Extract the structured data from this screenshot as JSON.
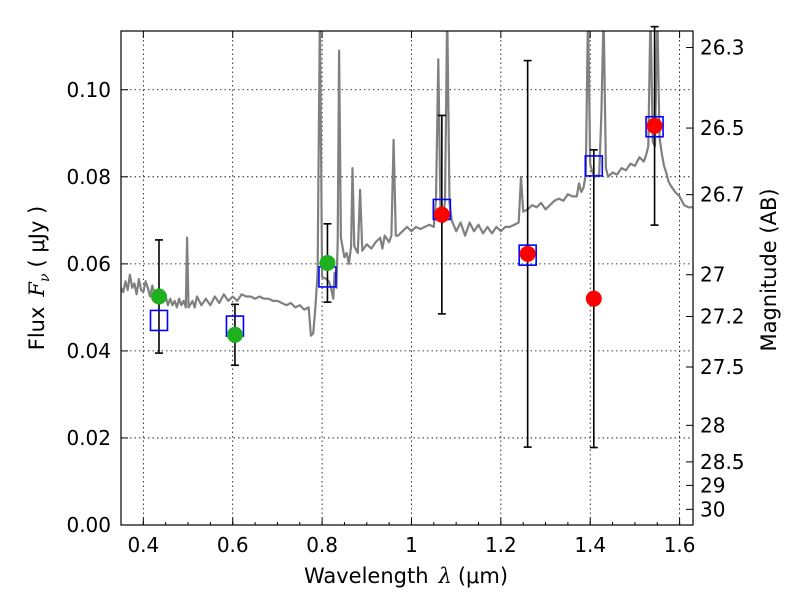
{
  "chart_data": {
    "type": "scatter",
    "xlabel_prefix": "Wavelength",
    "xlabel_symbol": "λ",
    "xlabel_unit": "(μm)",
    "ylabel_prefix": "Flux",
    "ylabel_symbol": "F",
    "ylabel_sub": "ν",
    "ylabel_unit": "( μJy )",
    "ylabel_right": "Magnitude (AB)",
    "xlim": [
      0.35,
      1.63
    ],
    "ylim": [
      0.0,
      0.1135
    ],
    "grid": true,
    "x_ticks": [
      0.4,
      0.6,
      0.8,
      1.0,
      1.2,
      1.4,
      1.6
    ],
    "x_tick_labels": [
      "0.4",
      "0.6",
      "0.8",
      "1",
      "1.2",
      "1.4",
      "1.6"
    ],
    "y_ticks": [
      0.0,
      0.02,
      0.04,
      0.06,
      0.08,
      0.1
    ],
    "y_tick_labels": [
      "0.00",
      "0.02",
      "0.04",
      "0.06",
      "0.08",
      "0.10"
    ],
    "right_ticks": [
      {
        "label": "26.3",
        "flux": 0.1097
      },
      {
        "label": "26.5",
        "flux": 0.0912
      },
      {
        "label": "26.7",
        "flux": 0.0759
      },
      {
        "label": "27",
        "flux": 0.0575
      },
      {
        "label": "27.2",
        "flux": 0.0479
      },
      {
        "label": "27.5",
        "flux": 0.0363
      },
      {
        "label": "28",
        "flux": 0.0229
      },
      {
        "label": "28.5",
        "flux": 0.0145
      },
      {
        "label": "29",
        "flux": 0.0091
      },
      {
        "label": "30",
        "flux": 0.0036
      }
    ],
    "series": [
      {
        "name": "model-spectrum",
        "kind": "line",
        "color": "#808080",
        "points": [
          [
            0.35,
            0.0545
          ],
          [
            0.355,
            0.0535
          ],
          [
            0.36,
            0.056
          ],
          [
            0.365,
            0.054
          ],
          [
            0.37,
            0.0575
          ],
          [
            0.375,
            0.0545
          ],
          [
            0.38,
            0.0555
          ],
          [
            0.385,
            0.053
          ],
          [
            0.39,
            0.0565
          ],
          [
            0.395,
            0.054
          ],
          [
            0.4,
            0.0535
          ],
          [
            0.405,
            0.056
          ],
          [
            0.41,
            0.0545
          ],
          [
            0.415,
            0.0525
          ],
          [
            0.42,
            0.055
          ],
          [
            0.425,
            0.053
          ],
          [
            0.43,
            0.054
          ],
          [
            0.435,
            0.052
          ],
          [
            0.44,
            0.0535
          ],
          [
            0.445,
            0.0515
          ],
          [
            0.45,
            0.0525
          ],
          [
            0.455,
            0.0505
          ],
          [
            0.46,
            0.052
          ],
          [
            0.465,
            0.0505
          ],
          [
            0.47,
            0.0515
          ],
          [
            0.475,
            0.05
          ],
          [
            0.48,
            0.052
          ],
          [
            0.485,
            0.0505
          ],
          [
            0.49,
            0.0515
          ],
          [
            0.495,
            0.05
          ],
          [
            0.498,
            0.066
          ],
          [
            0.501,
            0.05
          ],
          [
            0.51,
            0.0515
          ],
          [
            0.515,
            0.05
          ],
          [
            0.52,
            0.0525
          ],
          [
            0.53,
            0.0505
          ],
          [
            0.54,
            0.052
          ],
          [
            0.55,
            0.0505
          ],
          [
            0.56,
            0.0525
          ],
          [
            0.57,
            0.051
          ],
          [
            0.58,
            0.053
          ],
          [
            0.59,
            0.0515
          ],
          [
            0.6,
            0.0525
          ],
          [
            0.61,
            0.0515
          ],
          [
            0.62,
            0.053
          ],
          [
            0.63,
            0.0525
          ],
          [
            0.64,
            0.0525
          ],
          [
            0.65,
            0.052
          ],
          [
            0.66,
            0.0525
          ],
          [
            0.67,
            0.052
          ],
          [
            0.68,
            0.052
          ],
          [
            0.69,
            0.0515
          ],
          [
            0.7,
            0.0515
          ],
          [
            0.71,
            0.051
          ],
          [
            0.72,
            0.0505
          ],
          [
            0.73,
            0.051
          ],
          [
            0.74,
            0.05
          ],
          [
            0.75,
            0.0505
          ],
          [
            0.76,
            0.0495
          ],
          [
            0.77,
            0.05
          ],
          [
            0.775,
            0.0435
          ],
          [
            0.78,
            0.044
          ],
          [
            0.785,
            0.05
          ],
          [
            0.79,
            0.058
          ],
          [
            0.795,
            0.118
          ],
          [
            0.8,
            0.057
          ],
          [
            0.81,
            0.0565
          ],
          [
            0.815,
            0.056
          ],
          [
            0.82,
            0.0545
          ],
          [
            0.825,
            0.052
          ],
          [
            0.828,
            0.058
          ],
          [
            0.832,
            0.0545
          ],
          [
            0.835,
            0.065
          ],
          [
            0.838,
            0.109
          ],
          [
            0.842,
            0.066
          ],
          [
            0.85,
            0.0615
          ],
          [
            0.855,
            0.0625
          ],
          [
            0.86,
            0.06
          ],
          [
            0.865,
            0.064
          ],
          [
            0.868,
            0.082
          ],
          [
            0.872,
            0.064
          ],
          [
            0.88,
            0.0625
          ],
          [
            0.885,
            0.077
          ],
          [
            0.89,
            0.063
          ],
          [
            0.9,
            0.0645
          ],
          [
            0.91,
            0.0635
          ],
          [
            0.92,
            0.065
          ],
          [
            0.93,
            0.066
          ],
          [
            0.935,
            0.0635
          ],
          [
            0.94,
            0.0665
          ],
          [
            0.95,
            0.065
          ],
          [
            0.955,
            0.0665
          ],
          [
            0.96,
            0.0885
          ],
          [
            0.965,
            0.0665
          ],
          [
            0.97,
            0.0665
          ],
          [
            0.98,
            0.0675
          ],
          [
            0.99,
            0.0685
          ],
          [
            1.0,
            0.0675
          ],
          [
            1.01,
            0.0685
          ],
          [
            1.02,
            0.068
          ],
          [
            1.03,
            0.0685
          ],
          [
            1.04,
            0.069
          ],
          [
            1.05,
            0.0685
          ],
          [
            1.055,
            0.075
          ],
          [
            1.06,
            0.107
          ],
          [
            1.065,
            0.072
          ],
          [
            1.07,
            0.0695
          ],
          [
            1.075,
            0.0745
          ],
          [
            1.08,
            0.118
          ],
          [
            1.085,
            0.074
          ],
          [
            1.09,
            0.07
          ],
          [
            1.1,
            0.0675
          ],
          [
            1.11,
            0.0695
          ],
          [
            1.12,
            0.0665
          ],
          [
            1.13,
            0.0695
          ],
          [
            1.14,
            0.0675
          ],
          [
            1.15,
            0.069
          ],
          [
            1.16,
            0.067
          ],
          [
            1.17,
            0.0685
          ],
          [
            1.18,
            0.067
          ],
          [
            1.19,
            0.0685
          ],
          [
            1.2,
            0.0675
          ],
          [
            1.21,
            0.0685
          ],
          [
            1.22,
            0.0685
          ],
          [
            1.23,
            0.069
          ],
          [
            1.24,
            0.0695
          ],
          [
            1.245,
            0.08
          ],
          [
            1.25,
            0.072
          ],
          [
            1.26,
            0.0725
          ],
          [
            1.27,
            0.0735
          ],
          [
            1.28,
            0.073
          ],
          [
            1.29,
            0.074
          ],
          [
            1.3,
            0.0725
          ],
          [
            1.31,
            0.0735
          ],
          [
            1.32,
            0.0745
          ],
          [
            1.33,
            0.075
          ],
          [
            1.34,
            0.0745
          ],
          [
            1.35,
            0.076
          ],
          [
            1.36,
            0.0755
          ],
          [
            1.37,
            0.0755
          ],
          [
            1.375,
            0.0785
          ],
          [
            1.38,
            0.0765
          ],
          [
            1.385,
            0.0775
          ],
          [
            1.39,
            0.0805
          ],
          [
            1.395,
            0.118
          ],
          [
            1.4,
            0.083
          ],
          [
            1.405,
            0.081
          ],
          [
            1.41,
            0.08
          ],
          [
            1.42,
            0.0805
          ],
          [
            1.425,
            0.0945
          ],
          [
            1.43,
            0.118
          ],
          [
            1.435,
            0.082
          ],
          [
            1.44,
            0.08
          ],
          [
            1.45,
            0.081
          ],
          [
            1.46,
            0.0805
          ],
          [
            1.47,
            0.082
          ],
          [
            1.48,
            0.0815
          ],
          [
            1.49,
            0.083
          ],
          [
            1.5,
            0.0825
          ],
          [
            1.51,
            0.0845
          ],
          [
            1.52,
            0.0835
          ],
          [
            1.525,
            0.085
          ],
          [
            1.53,
            0.087
          ],
          [
            1.535,
            0.118
          ],
          [
            1.54,
            0.088
          ],
          [
            1.545,
            0.087
          ],
          [
            1.55,
            0.118
          ],
          [
            1.555,
            0.089
          ],
          [
            1.56,
            0.0855
          ],
          [
            1.565,
            0.0825
          ],
          [
            1.57,
            0.081
          ],
          [
            1.575,
            0.079
          ],
          [
            1.58,
            0.078
          ],
          [
            1.59,
            0.0765
          ],
          [
            1.6,
            0.0755
          ],
          [
            1.605,
            0.0745
          ],
          [
            1.61,
            0.0735
          ],
          [
            1.62,
            0.073
          ],
          [
            1.63,
            0.073
          ]
        ]
      },
      {
        "name": "observed-ground",
        "kind": "points",
        "color": "#1fb01f",
        "points": [
          {
            "x": 0.435,
            "y": 0.0525,
            "err": 0.013
          },
          {
            "x": 0.605,
            "y": 0.0437,
            "err": 0.007
          },
          {
            "x": 0.812,
            "y": 0.0602,
            "err": 0.009
          }
        ]
      },
      {
        "name": "observed-hst",
        "kind": "points",
        "color": "#ff0000",
        "points": [
          {
            "x": 1.068,
            "y": 0.0713,
            "err": 0.0228
          },
          {
            "x": 1.26,
            "y": 0.0623,
            "err": 0.0444
          },
          {
            "x": 1.408,
            "y": 0.052,
            "err": 0.0342
          },
          {
            "x": 1.544,
            "y": 0.0917,
            "err": 0.0228
          }
        ]
      },
      {
        "name": "model-photometry",
        "kind": "squares",
        "color": "#0000ff",
        "points": [
          {
            "x": 0.435,
            "y": 0.047
          },
          {
            "x": 0.605,
            "y": 0.0457
          },
          {
            "x": 0.812,
            "y": 0.057
          },
          {
            "x": 1.068,
            "y": 0.0725
          },
          {
            "x": 1.26,
            "y": 0.062
          },
          {
            "x": 1.408,
            "y": 0.0825
          },
          {
            "x": 1.544,
            "y": 0.0915
          }
        ]
      }
    ]
  }
}
